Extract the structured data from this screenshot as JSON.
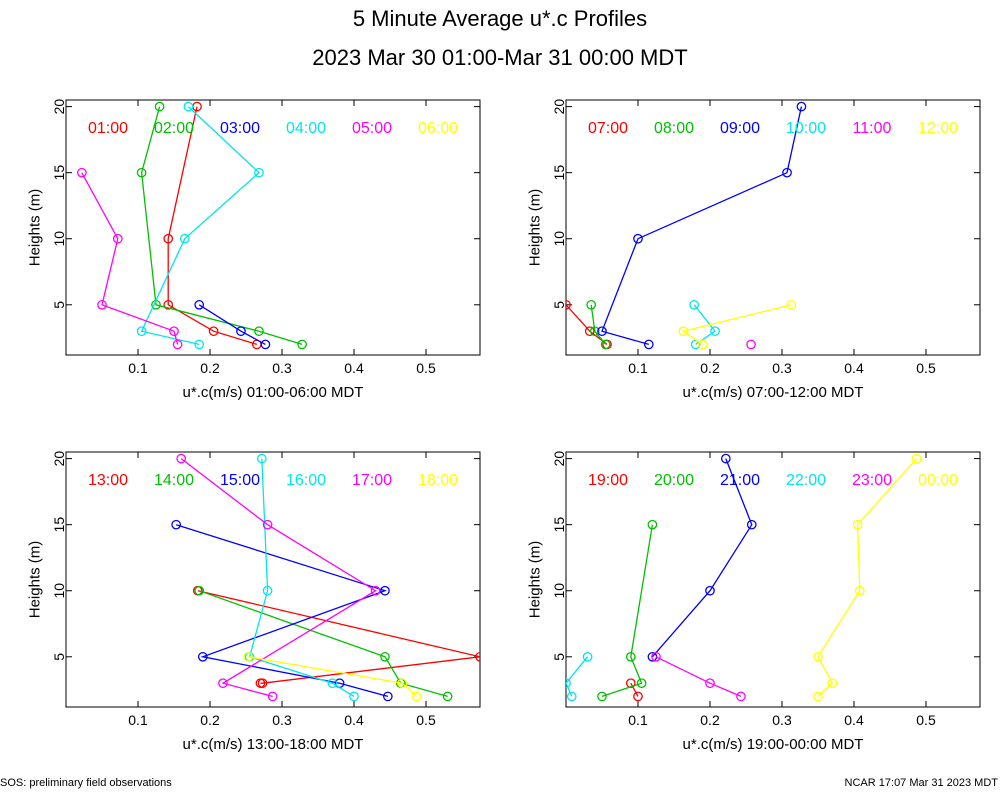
{
  "title": "5 Minute Average u*.c Profiles",
  "subtitle": "2023 Mar 30 01:00-Mar 31 00:00 MDT",
  "footer_left": "SOS: preliminary field observations",
  "footer_right": "NCAR 17:07 Mar 31 2023 MDT",
  "colors": {
    "red": "#ff0000",
    "green": "#00c000",
    "blue": "#0000ff",
    "cyan": "#00e5ee",
    "magenta": "#ff00ff",
    "yellow": "#ffff00"
  },
  "chart_data": [
    {
      "type": "line",
      "id": "p1",
      "xlabel": "u*.c(m/s) 01:00-06:00 MDT",
      "ylabel": "Heights (m)",
      "xlim": [
        0,
        0.575
      ],
      "ylim": [
        1.2,
        20.5
      ],
      "xticks": [
        "0.1",
        "0.2",
        "0.3",
        "0.4",
        "0.5"
      ],
      "xtick_values": [
        0.1,
        0.2,
        0.3,
        0.4,
        0.5
      ],
      "yticks": [
        "5",
        "10",
        "15",
        "20"
      ],
      "ytick_values": [
        5,
        10,
        15,
        20
      ],
      "series": [
        {
          "name": "01:00",
          "color": "red",
          "points": [
            [
              0.182,
              20
            ],
            [
              0.142,
              10
            ],
            [
              0.142,
              5
            ],
            [
              0.205,
              3
            ],
            [
              0.265,
              2
            ]
          ]
        },
        {
          "name": "02:00",
          "color": "green",
          "points": [
            [
              0.13,
              20
            ],
            [
              0.105,
              15
            ],
            [
              0.125,
              5
            ],
            [
              0.268,
              3
            ],
            [
              0.328,
              2
            ]
          ]
        },
        {
          "name": "03:00",
          "color": "blue",
          "points": [
            [
              0.185,
              5
            ],
            [
              0.243,
              3
            ],
            [
              0.277,
              2
            ]
          ]
        },
        {
          "name": "04:00",
          "color": "cyan",
          "points": [
            [
              0.17,
              20
            ],
            [
              0.268,
              15
            ],
            [
              0.165,
              10
            ],
            [
              0.105,
              3
            ],
            [
              0.185,
              2
            ]
          ]
        },
        {
          "name": "05:00",
          "color": "magenta",
          "points": [
            [
              0.022,
              15
            ],
            [
              0.072,
              10
            ],
            [
              0.05,
              5
            ],
            [
              0.15,
              3
            ],
            [
              0.155,
              2
            ]
          ]
        },
        {
          "name": "06:00",
          "color": "yellow",
          "points": []
        }
      ]
    },
    {
      "type": "line",
      "id": "p2",
      "xlabel": "u*.c(m/s) 07:00-12:00 MDT",
      "ylabel": "Heights (m)",
      "xlim": [
        0,
        0.575
      ],
      "ylim": [
        1.2,
        20.5
      ],
      "xticks": [
        "0.1",
        "0.2",
        "0.3",
        "0.4",
        "0.5"
      ],
      "xtick_values": [
        0.1,
        0.2,
        0.3,
        0.4,
        0.5
      ],
      "yticks": [
        "5",
        "10",
        "15",
        "20"
      ],
      "ytick_values": [
        5,
        10,
        15,
        20
      ],
      "series": [
        {
          "name": "07:00",
          "color": "red",
          "points": [
            [
              0.0,
              5
            ],
            [
              0.033,
              3
            ],
            [
              0.057,
              2
            ]
          ]
        },
        {
          "name": "08:00",
          "color": "green",
          "points": [
            [
              0.035,
              5
            ],
            [
              0.04,
              3
            ],
            [
              0.055,
              2
            ]
          ]
        },
        {
          "name": "09:00",
          "color": "blue",
          "points": [
            [
              0.327,
              20
            ],
            [
              0.307,
              15
            ],
            [
              0.1,
              10
            ],
            [
              0.05,
              3
            ],
            [
              0.115,
              2
            ]
          ]
        },
        {
          "name": "10:00",
          "color": "cyan",
          "points": [
            [
              0.178,
              5
            ],
            [
              0.207,
              3
            ],
            [
              0.18,
              2
            ]
          ]
        },
        {
          "name": "11:00",
          "color": "magenta",
          "points": [
            [
              0.257,
              2
            ]
          ]
        },
        {
          "name": "12:00",
          "color": "yellow",
          "points": [
            [
              0.313,
              5
            ],
            [
              0.163,
              3
            ],
            [
              0.19,
              2
            ]
          ]
        }
      ]
    },
    {
      "type": "line",
      "id": "p3",
      "xlabel": "u*.c(m/s) 13:00-18:00 MDT",
      "ylabel": "Heights (m)",
      "xlim": [
        0,
        0.575
      ],
      "ylim": [
        1.2,
        20.5
      ],
      "xticks": [
        "0.1",
        "0.2",
        "0.3",
        "0.4",
        "0.5"
      ],
      "xtick_values": [
        0.1,
        0.2,
        0.3,
        0.4,
        0.5
      ],
      "yticks": [
        "5",
        "10",
        "15",
        "20"
      ],
      "ytick_values": [
        5,
        10,
        15,
        20
      ],
      "series": [
        {
          "name": "13:00",
          "color": "red",
          "points": [
            [
              0.183,
              10
            ],
            [
              0.575,
              5
            ],
            [
              0.273,
              3
            ],
            [
              0.27,
              3
            ]
          ]
        },
        {
          "name": "14:00",
          "color": "green",
          "points": [
            [
              0.185,
              10
            ],
            [
              0.443,
              5
            ],
            [
              0.465,
              3
            ],
            [
              0.53,
              2
            ]
          ]
        },
        {
          "name": "15:00",
          "color": "blue",
          "points": [
            [
              0.153,
              15
            ],
            [
              0.443,
              10
            ],
            [
              0.19,
              5
            ],
            [
              0.38,
              3
            ],
            [
              0.447,
              2
            ]
          ]
        },
        {
          "name": "16:00",
          "color": "cyan",
          "points": [
            [
              0.272,
              20
            ],
            [
              0.28,
              10
            ],
            [
              0.255,
              5
            ],
            [
              0.37,
              3
            ],
            [
              0.4,
              2
            ]
          ]
        },
        {
          "name": "17:00",
          "color": "magenta",
          "points": [
            [
              0.16,
              20
            ],
            [
              0.28,
              15
            ],
            [
              0.43,
              10
            ],
            [
              0.218,
              3
            ],
            [
              0.287,
              2
            ]
          ]
        },
        {
          "name": "18:00",
          "color": "yellow",
          "points": [
            [
              0.253,
              5
            ],
            [
              0.467,
              3
            ],
            [
              0.487,
              2
            ]
          ]
        }
      ]
    },
    {
      "type": "line",
      "id": "p4",
      "xlabel": "u*.c(m/s) 19:00-00:00 MDT",
      "ylabel": "Heights (m)",
      "xlim": [
        0,
        0.575
      ],
      "ylim": [
        1.2,
        20.5
      ],
      "xticks": [
        "0.1",
        "0.2",
        "0.3",
        "0.4",
        "0.5"
      ],
      "xtick_values": [
        0.1,
        0.2,
        0.3,
        0.4,
        0.5
      ],
      "yticks": [
        "5",
        "10",
        "15",
        "20"
      ],
      "ytick_values": [
        5,
        10,
        15,
        20
      ],
      "series": [
        {
          "name": "19:00",
          "color": "red",
          "points": [
            [
              0.09,
              3
            ],
            [
              0.1,
              2
            ]
          ]
        },
        {
          "name": "20:00",
          "color": "green",
          "points": [
            [
              0.12,
              15
            ],
            [
              0.09,
              5
            ],
            [
              0.105,
              3
            ],
            [
              0.05,
              2
            ]
          ]
        },
        {
          "name": "21:00",
          "color": "blue",
          "points": [
            [
              0.222,
              20
            ],
            [
              0.258,
              15
            ],
            [
              0.2,
              10
            ],
            [
              0.12,
              5
            ]
          ]
        },
        {
          "name": "22:00",
          "color": "cyan",
          "points": [
            [
              0.03,
              5
            ],
            [
              0.0,
              3
            ],
            [
              0.008,
              2
            ]
          ]
        },
        {
          "name": "23:00",
          "color": "magenta",
          "points": [
            [
              0.125,
              5
            ],
            [
              0.2,
              3
            ],
            [
              0.243,
              2
            ]
          ]
        },
        {
          "name": "00:00",
          "color": "yellow",
          "points": [
            [
              0.487,
              20
            ],
            [
              0.405,
              15
            ],
            [
              0.408,
              10
            ],
            [
              0.35,
              5
            ],
            [
              0.37,
              3
            ],
            [
              0.35,
              2
            ]
          ]
        }
      ]
    }
  ]
}
